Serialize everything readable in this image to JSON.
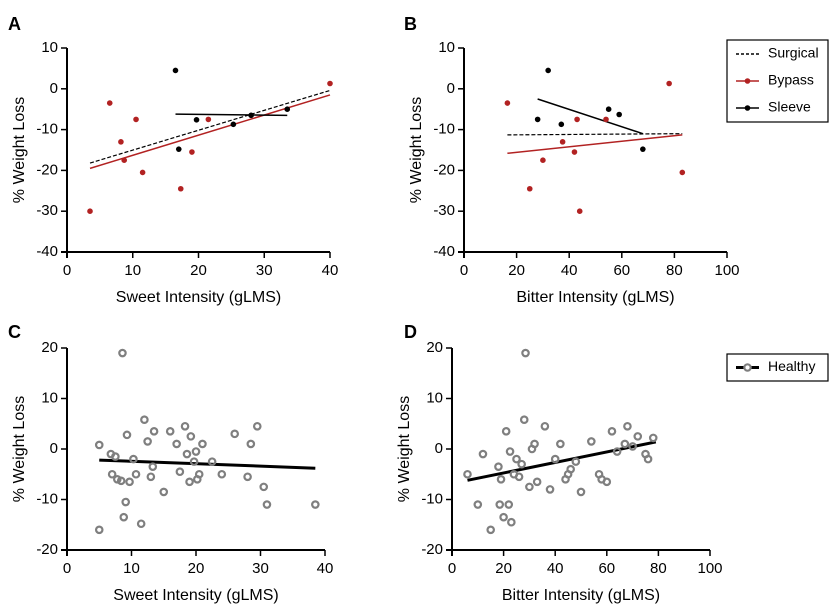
{
  "colors": {
    "bypass": "#b22222",
    "sleeve": "#000000",
    "surgical": "#000000",
    "healthy_marker": "#7f7f7f",
    "healthy_line": "#000000"
  },
  "legend_top": {
    "items": [
      {
        "label": "Surgical",
        "style": "dashed",
        "color": "#000000"
      },
      {
        "label": "Bypass",
        "style": "solid-dot",
        "color": "#b22222"
      },
      {
        "label": "Sleeve",
        "style": "solid-dot",
        "color": "#000000"
      }
    ]
  },
  "legend_bottom": {
    "items": [
      {
        "label": "Healthy",
        "style": "solid-ring",
        "color": "#000000"
      }
    ]
  },
  "chart_data": [
    {
      "panel": "A",
      "type": "scatter",
      "xlabel": "Sweet Intensity (gLMS)",
      "ylabel": "% Weight Loss",
      "xlim": [
        0,
        40
      ],
      "ylim": [
        -40,
        10
      ],
      "xticks": [
        0,
        10,
        20,
        30,
        40
      ],
      "yticks": [
        10,
        0,
        -10,
        -20,
        -30,
        -40
      ],
      "series": [
        {
          "name": "Bypass",
          "points": [
            [
              3.5,
              -30
            ],
            [
              6.5,
              -3.5
            ],
            [
              8.2,
              -13
            ],
            [
              8.7,
              -17.5
            ],
            [
              10.5,
              -7.5
            ],
            [
              11.5,
              -20.5
            ],
            [
              17.3,
              -24.5
            ],
            [
              19,
              -15.5
            ],
            [
              21.5,
              -7.5
            ],
            [
              40,
              1.3
            ]
          ]
        },
        {
          "name": "Sleeve",
          "points": [
            [
              16.5,
              4.5
            ],
            [
              17,
              -14.8
            ],
            [
              19.7,
              -7.6
            ],
            [
              25.3,
              -8.7
            ],
            [
              28,
              -6.5
            ],
            [
              33.5,
              -5
            ]
          ]
        }
      ],
      "fit_lines": [
        {
          "name": "Surgical",
          "x": [
            3.5,
            40
          ],
          "y": [
            -18.2,
            -0.4
          ]
        },
        {
          "name": "Bypass",
          "x": [
            3.5,
            40
          ],
          "y": [
            -19.5,
            -1.5
          ]
        },
        {
          "name": "Sleeve",
          "x": [
            16.5,
            33.5
          ],
          "y": [
            -6.2,
            -6.5
          ]
        }
      ]
    },
    {
      "panel": "B",
      "type": "scatter",
      "xlabel": "Bitter Intensity (gLMS)",
      "ylabel": "% Weight Loss",
      "xlim": [
        0,
        100
      ],
      "ylim": [
        -40,
        10
      ],
      "xticks": [
        0,
        20,
        40,
        60,
        80,
        100
      ],
      "yticks": [
        10,
        0,
        -10,
        -20,
        -30,
        -40
      ],
      "series": [
        {
          "name": "Bypass",
          "points": [
            [
              16.5,
              -3.5
            ],
            [
              25,
              -24.5
            ],
            [
              30,
              -17.5
            ],
            [
              37.5,
              -13
            ],
            [
              42,
              -15.5
            ],
            [
              43,
              -7.5
            ],
            [
              44,
              -30
            ],
            [
              54,
              -7.5
            ],
            [
              78,
              1.3
            ],
            [
              83,
              -20.5
            ]
          ]
        },
        {
          "name": "Sleeve",
          "points": [
            [
              28,
              -7.5
            ],
            [
              32,
              4.5
            ],
            [
              37,
              -8.7
            ],
            [
              55,
              -5
            ],
            [
              59,
              -6.3
            ],
            [
              68,
              -14.8
            ]
          ]
        }
      ],
      "fit_lines": [
        {
          "name": "Surgical",
          "x": [
            16.5,
            83
          ],
          "y": [
            -11.3,
            -11
          ]
        },
        {
          "name": "Bypass",
          "x": [
            16.5,
            83
          ],
          "y": [
            -15.8,
            -11.3
          ]
        },
        {
          "name": "Sleeve",
          "x": [
            28,
            68
          ],
          "y": [
            -2.5,
            -11
          ]
        }
      ]
    },
    {
      "panel": "C",
      "type": "scatter",
      "xlabel": "Sweet Intensity (gLMS)",
      "ylabel": "% Weight Loss",
      "xlim": [
        0,
        40
      ],
      "ylim": [
        -20,
        20
      ],
      "xticks": [
        0,
        10,
        20,
        30,
        40
      ],
      "yticks": [
        20,
        10,
        0,
        -10,
        -20
      ],
      "series": [
        {
          "name": "Healthy",
          "points": [
            [
              5,
              0.8
            ],
            [
              5,
              -16
            ],
            [
              6.8,
              -1
            ],
            [
              7,
              -5
            ],
            [
              7.5,
              -1.5
            ],
            [
              7.8,
              -6
            ],
            [
              8.4,
              -6.3
            ],
            [
              8.6,
              19
            ],
            [
              8.8,
              -13.5
            ],
            [
              9.1,
              -10.5
            ],
            [
              9.3,
              2.8
            ],
            [
              9.7,
              -6.5
            ],
            [
              10.3,
              -2
            ],
            [
              10.7,
              -5
            ],
            [
              11.5,
              -14.8
            ],
            [
              12,
              5.8
            ],
            [
              12.5,
              1.5
            ],
            [
              13,
              -5.5
            ],
            [
              13.3,
              -3.5
            ],
            [
              13.5,
              3.5
            ],
            [
              15,
              -8.5
            ],
            [
              16,
              3.5
            ],
            [
              17,
              1
            ],
            [
              17.5,
              -4.5
            ],
            [
              18.3,
              4.5
            ],
            [
              18.6,
              -1
            ],
            [
              19,
              -6.5
            ],
            [
              19.2,
              2.5
            ],
            [
              19.7,
              -2.5
            ],
            [
              20,
              -0.5
            ],
            [
              20.2,
              -6
            ],
            [
              20.5,
              -5
            ],
            [
              21,
              1
            ],
            [
              22.5,
              -2.5
            ],
            [
              24,
              -5
            ],
            [
              26,
              3
            ],
            [
              28,
              -5.5
            ],
            [
              28.5,
              1
            ],
            [
              29.5,
              4.5
            ],
            [
              30.5,
              -7.5
            ],
            [
              31,
              -11
            ],
            [
              38.5,
              -11
            ]
          ]
        }
      ],
      "fit_lines": [
        {
          "name": "Healthy",
          "x": [
            5,
            38.5
          ],
          "y": [
            -2.2,
            -3.8
          ]
        }
      ]
    },
    {
      "panel": "D",
      "type": "scatter",
      "xlabel": "Bitter Intensity (gLMS)",
      "ylabel": "% Weight Loss",
      "xlim": [
        0,
        100
      ],
      "ylim": [
        -20,
        20
      ],
      "xticks": [
        0,
        20,
        40,
        60,
        80,
        100
      ],
      "yticks": [
        20,
        10,
        0,
        -10,
        -20
      ],
      "series": [
        {
          "name": "Healthy",
          "points": [
            [
              6,
              -5
            ],
            [
              10,
              -11
            ],
            [
              12,
              -1
            ],
            [
              15,
              -16
            ],
            [
              18,
              -3.5
            ],
            [
              18.5,
              -11
            ],
            [
              19,
              -6
            ],
            [
              20,
              -13.5
            ],
            [
              21,
              3.5
            ],
            [
              22,
              -11
            ],
            [
              22.5,
              -0.5
            ],
            [
              23,
              -14.5
            ],
            [
              24,
              -5
            ],
            [
              25,
              -2
            ],
            [
              26,
              -5.5
            ],
            [
              27,
              -3
            ],
            [
              28,
              5.8
            ],
            [
              28.5,
              19
            ],
            [
              30,
              -7.5
            ],
            [
              31,
              0
            ],
            [
              32,
              1
            ],
            [
              33,
              -6.5
            ],
            [
              36,
              4.5
            ],
            [
              38,
              -8
            ],
            [
              40,
              -2
            ],
            [
              42,
              1
            ],
            [
              44,
              -6
            ],
            [
              45,
              -5
            ],
            [
              46,
              -4
            ],
            [
              48,
              -2.5
            ],
            [
              50,
              -8.5
            ],
            [
              54,
              1.5
            ],
            [
              57,
              -5
            ],
            [
              58,
              -6
            ],
            [
              60,
              -6.5
            ],
            [
              62,
              3.5
            ],
            [
              64,
              -0.5
            ],
            [
              67,
              1
            ],
            [
              68,
              4.5
            ],
            [
              70,
              0.5
            ],
            [
              72,
              2.5
            ],
            [
              75,
              -1
            ],
            [
              76,
              -2
            ],
            [
              78,
              2.2
            ]
          ]
        }
      ],
      "fit_lines": [
        {
          "name": "Healthy",
          "x": [
            6,
            79
          ],
          "y": [
            -6.2,
            1.4
          ]
        }
      ]
    }
  ]
}
